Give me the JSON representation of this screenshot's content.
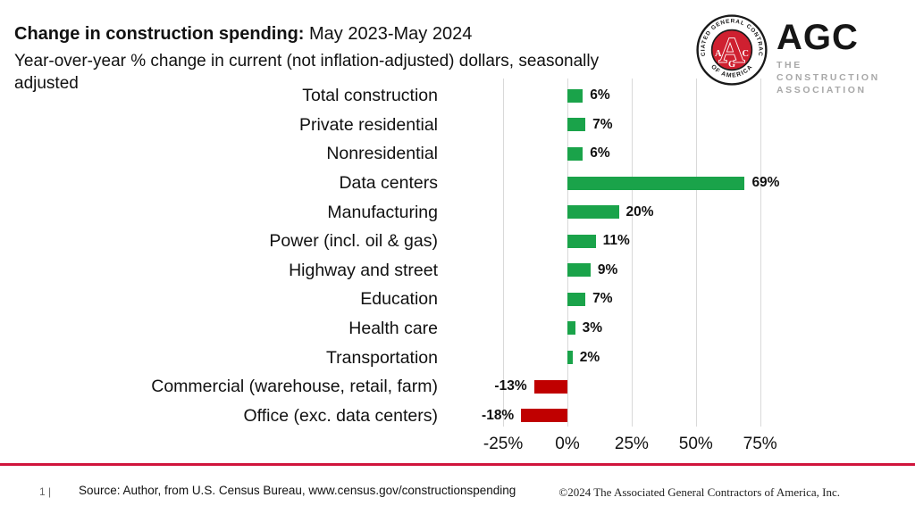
{
  "header": {
    "title_bold": "Change in construction spending:",
    "title_rest": " May 2023-May 2024",
    "subtitle": "Year-over-year % change in current (not inflation-adjusted) dollars, seasonally adjusted"
  },
  "logo": {
    "acronym": "AGC",
    "tagline_line1": "THE CONSTRUCTION",
    "tagline_line2": "ASSOCIATION",
    "seal_ring_top": "ASSOCIATED GENERAL CONTRACTORS",
    "seal_ring_bottom": "◆ OF AMERICA ◆",
    "seal_center_letter": "A",
    "seal_small_letters": [
      "A",
      "G",
      "C"
    ]
  },
  "chart_data": {
    "type": "bar",
    "orientation": "horizontal",
    "title": "Change in construction spending: May 2023-May 2024",
    "subtitle": "Year-over-year % change in current (not inflation-adjusted) dollars, seasonally adjusted",
    "categories": [
      "Total construction",
      "Private residential",
      "Nonresidential",
      "Data centers",
      "Manufacturing",
      "Power (incl. oil & gas)",
      "Highway and street",
      "Education",
      "Health care",
      "Transportation",
      "Commercial (warehouse, retail, farm)",
      "Office (exc. data centers)"
    ],
    "values": [
      6,
      7,
      6,
      69,
      20,
      11,
      9,
      7,
      3,
      2,
      -13,
      -18
    ],
    "value_labels": [
      "6%",
      "7%",
      "6%",
      "69%",
      "20%",
      "11%",
      "9%",
      "7%",
      "3%",
      "2%",
      "-13%",
      "-18%"
    ],
    "x_tick_values": [
      -25,
      0,
      25,
      50,
      75
    ],
    "x_tick_labels": [
      "-25%",
      "0%",
      "25%",
      "50%",
      "75%"
    ],
    "xlim": [
      -25,
      75
    ],
    "grid": true,
    "legend": false,
    "unit": "%"
  },
  "colors": {
    "positive_bar": "#1aa34a",
    "negative_bar": "#c00000",
    "grid_line": "#d9d9d9",
    "divider_red": "#d0143c",
    "seal_red": "#cf2030",
    "tagline_gray": "#a8a8a8",
    "text": "#111111"
  },
  "footer": {
    "page_number": "1 |",
    "source": "Source: Author, from U.S. Census Bureau, www.census.gov/constructionspending",
    "copyright": "©2024 The Associated General Contractors of America, Inc."
  }
}
